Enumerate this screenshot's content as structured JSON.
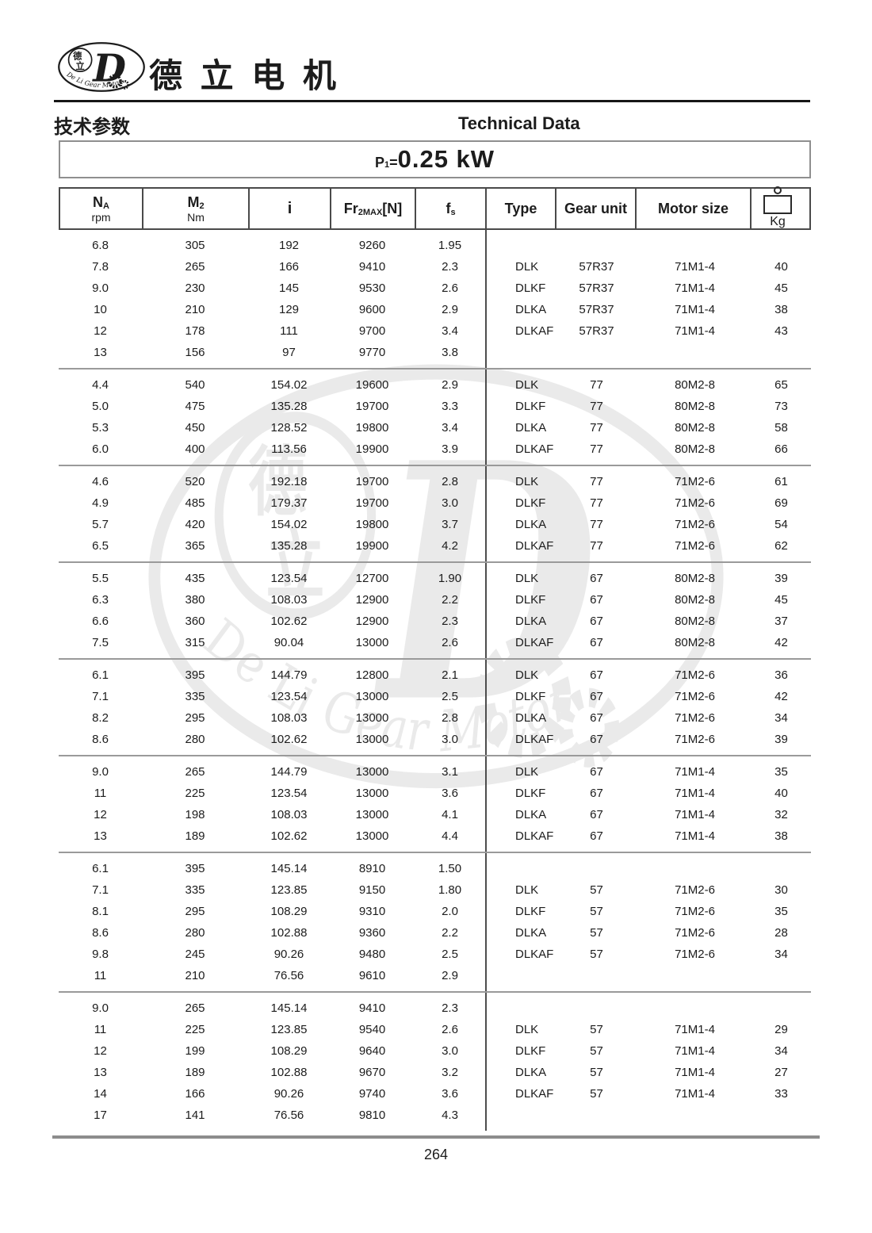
{
  "brand": {
    "logo": {
      "char_top": "德",
      "char_bottom": "立",
      "letter": "D",
      "arc_text": "De Li Gear Motor"
    },
    "name_cn": "德 立 电 机"
  },
  "section": {
    "title_cn": "技术参数",
    "title_en": "Technical Data"
  },
  "power_title": {
    "prefix_main": "P",
    "prefix_sub": "1",
    "prefix_eq": "=",
    "value": "0.25 kW"
  },
  "table": {
    "header": {
      "na_main": "N",
      "na_sub": "A",
      "na_unit": "rpm",
      "m2_main": "M",
      "m2_sub": "2",
      "m2_unit": "Nm",
      "i": "i",
      "fr_main": "Fr",
      "fr_sub": "2MAX",
      "fr_bracket": "[N]",
      "fs_main": "f",
      "fs_sub": "s",
      "type": "Type",
      "gear_unit": "Gear unit",
      "motor_size": "Motor size",
      "kg": "Kg"
    },
    "groups": [
      {
        "left": [
          [
            "6.8",
            "305",
            "192",
            "9260",
            "1.95"
          ],
          [
            "7.8",
            "265",
            "166",
            "9410",
            "2.3"
          ],
          [
            "9.0",
            "230",
            "145",
            "9530",
            "2.6"
          ],
          [
            "10",
            "210",
            "129",
            "9600",
            "2.9"
          ],
          [
            "12",
            "178",
            "111",
            "9700",
            "3.4"
          ],
          [
            "13",
            "156",
            "97",
            "9770",
            "3.8"
          ]
        ],
        "right": [
          [
            "DLK",
            "57R37",
            "71M1-4",
            "40"
          ],
          [
            "DLKF",
            "57R37",
            "71M1-4",
            "45"
          ],
          [
            "DLKA",
            "57R37",
            "71M1-4",
            "38"
          ],
          [
            "DLKAF",
            "57R37",
            "71M1-4",
            "43"
          ]
        ]
      },
      {
        "left": [
          [
            "4.4",
            "540",
            "154.02",
            "19600",
            "2.9"
          ],
          [
            "5.0",
            "475",
            "135.28",
            "19700",
            "3.3"
          ],
          [
            "5.3",
            "450",
            "128.52",
            "19800",
            "3.4"
          ],
          [
            "6.0",
            "400",
            "113.56",
            "19900",
            "3.9"
          ]
        ],
        "right": [
          [
            "DLK",
            "77",
            "80M2-8",
            "65"
          ],
          [
            "DLKF",
            "77",
            "80M2-8",
            "73"
          ],
          [
            "DLKA",
            "77",
            "80M2-8",
            "58"
          ],
          [
            "DLKAF",
            "77",
            "80M2-8",
            "66"
          ]
        ]
      },
      {
        "left": [
          [
            "4.6",
            "520",
            "192.18",
            "19700",
            "2.8"
          ],
          [
            "4.9",
            "485",
            "179.37",
            "19700",
            "3.0"
          ],
          [
            "5.7",
            "420",
            "154.02",
            "19800",
            "3.7"
          ],
          [
            "6.5",
            "365",
            "135.28",
            "19900",
            "4.2"
          ]
        ],
        "right": [
          [
            "DLK",
            "77",
            "71M2-6",
            "61"
          ],
          [
            "DLKF",
            "77",
            "71M2-6",
            "69"
          ],
          [
            "DLKA",
            "77",
            "71M2-6",
            "54"
          ],
          [
            "DLKAF",
            "77",
            "71M2-6",
            "62"
          ]
        ]
      },
      {
        "left": [
          [
            "5.5",
            "435",
            "123.54",
            "12700",
            "1.90"
          ],
          [
            "6.3",
            "380",
            "108.03",
            "12900",
            "2.2"
          ],
          [
            "6.6",
            "360",
            "102.62",
            "12900",
            "2.3"
          ],
          [
            "7.5",
            "315",
            "90.04",
            "13000",
            "2.6"
          ]
        ],
        "right": [
          [
            "DLK",
            "67",
            "80M2-8",
            "39"
          ],
          [
            "DLKF",
            "67",
            "80M2-8",
            "45"
          ],
          [
            "DLKA",
            "67",
            "80M2-8",
            "37"
          ],
          [
            "DLKAF",
            "67",
            "80M2-8",
            "42"
          ]
        ]
      },
      {
        "left": [
          [
            "6.1",
            "395",
            "144.79",
            "12800",
            "2.1"
          ],
          [
            "7.1",
            "335",
            "123.54",
            "13000",
            "2.5"
          ],
          [
            "8.2",
            "295",
            "108.03",
            "13000",
            "2.8"
          ],
          [
            "8.6",
            "280",
            "102.62",
            "13000",
            "3.0"
          ]
        ],
        "right": [
          [
            "DLK",
            "67",
            "71M2-6",
            "36"
          ],
          [
            "DLKF",
            "67",
            "71M2-6",
            "42"
          ],
          [
            "DLKA",
            "67",
            "71M2-6",
            "34"
          ],
          [
            "DLKAF",
            "67",
            "71M2-6",
            "39"
          ]
        ]
      },
      {
        "left": [
          [
            "9.0",
            "265",
            "144.79",
            "13000",
            "3.1"
          ],
          [
            "11",
            "225",
            "123.54",
            "13000",
            "3.6"
          ],
          [
            "12",
            "198",
            "108.03",
            "13000",
            "4.1"
          ],
          [
            "13",
            "189",
            "102.62",
            "13000",
            "4.4"
          ]
        ],
        "right": [
          [
            "DLK",
            "67",
            "71M1-4",
            "35"
          ],
          [
            "DLKF",
            "67",
            "71M1-4",
            "40"
          ],
          [
            "DLKA",
            "67",
            "71M1-4",
            "32"
          ],
          [
            "DLKAF",
            "67",
            "71M1-4",
            "38"
          ]
        ]
      },
      {
        "left": [
          [
            "6.1",
            "395",
            "145.14",
            "8910",
            "1.50"
          ],
          [
            "7.1",
            "335",
            "123.85",
            "9150",
            "1.80"
          ],
          [
            "8.1",
            "295",
            "108.29",
            "9310",
            "2.0"
          ],
          [
            "8.6",
            "280",
            "102.88",
            "9360",
            "2.2"
          ],
          [
            "9.8",
            "245",
            "90.26",
            "9480",
            "2.5"
          ],
          [
            "11",
            "210",
            "76.56",
            "9610",
            "2.9"
          ]
        ],
        "right": [
          [
            "DLK",
            "57",
            "71M2-6",
            "30"
          ],
          [
            "DLKF",
            "57",
            "71M2-6",
            "35"
          ],
          [
            "DLKA",
            "57",
            "71M2-6",
            "28"
          ],
          [
            "DLKAF",
            "57",
            "71M2-6",
            "34"
          ]
        ]
      },
      {
        "left": [
          [
            "9.0",
            "265",
            "145.14",
            "9410",
            "2.3"
          ],
          [
            "11",
            "225",
            "123.85",
            "9540",
            "2.6"
          ],
          [
            "12",
            "199",
            "108.29",
            "9640",
            "3.0"
          ],
          [
            "13",
            "189",
            "102.88",
            "9670",
            "3.2"
          ],
          [
            "14",
            "166",
            "90.26",
            "9740",
            "3.6"
          ],
          [
            "17",
            "141",
            "76.56",
            "9810",
            "4.3"
          ]
        ],
        "right": [
          [
            "DLK",
            "57",
            "71M1-4",
            "29"
          ],
          [
            "DLKF",
            "57",
            "71M1-4",
            "34"
          ],
          [
            "DLKA",
            "57",
            "71M1-4",
            "27"
          ],
          [
            "DLKAF",
            "57",
            "71M1-4",
            "33"
          ]
        ]
      }
    ]
  },
  "footer": {
    "page_number": "264"
  },
  "colors": {
    "text": "#1c1c1c",
    "table_border": "#4a4a4a",
    "group_separator": "#9a9a9a",
    "footer_rule": "#8c8c8c"
  }
}
